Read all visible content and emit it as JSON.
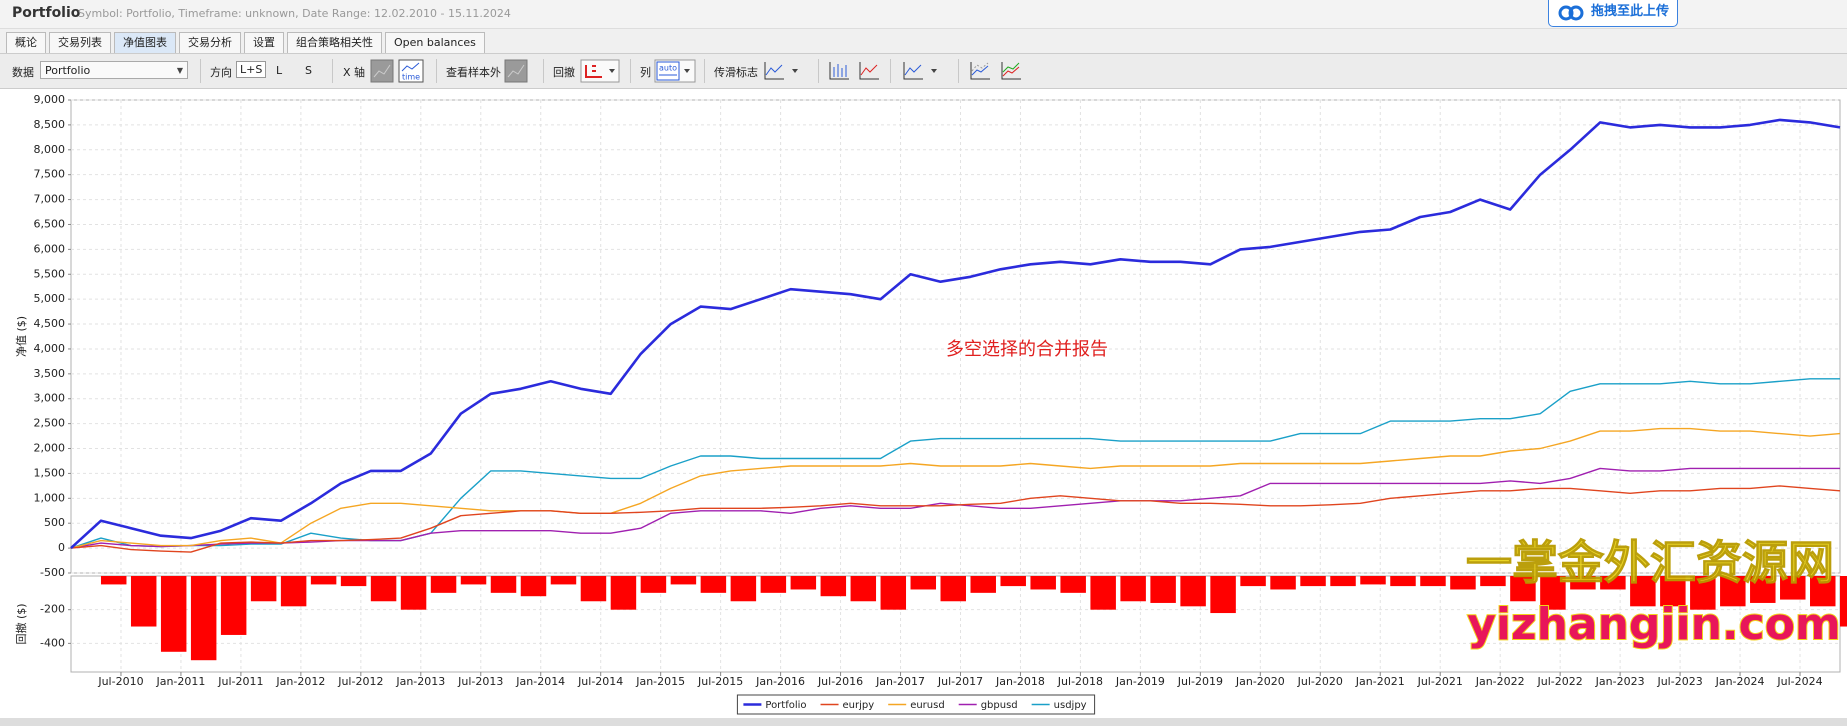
{
  "window": {
    "title": "Portfolio",
    "subtitle": "Symbol: Portfolio, Timeframe: unknown, Date Range: 12.02.2010 - 15.11.2024",
    "upload_button": "拖拽至此上传"
  },
  "tabs": {
    "items": [
      "概论",
      "交易列表",
      "净值图表",
      "交易分析",
      "设置",
      "组合策略相关性",
      "Open balances"
    ],
    "active": 2
  },
  "toolbar": {
    "data_label": "数据",
    "data_select": "Portfolio",
    "direction_label": "方向",
    "direction_options": [
      "L+S",
      "L",
      "S"
    ],
    "x_axis_label": "X 轴",
    "time_icon": "time",
    "out_of_sample_label": "查看样本外",
    "drawdown_label": "回撤",
    "columns_label": "列",
    "auto_icon": "auto",
    "markers_label": "传滑标志"
  },
  "watermark": {
    "cn": "一掌金外汇资源网",
    "url": "yizhangjin.com"
  },
  "chart_data": [
    {
      "type": "line",
      "y_label": "净值 ($)",
      "annotation": "多空选择的合并报告",
      "grid": true,
      "legend": "bottom",
      "x": [
        "Feb-2010",
        "May-2010",
        "Aug-2010",
        "Nov-2010",
        "Feb-2011",
        "May-2011",
        "Aug-2011",
        "Nov-2011",
        "Feb-2012",
        "May-2012",
        "Aug-2012",
        "Nov-2012",
        "Feb-2013",
        "May-2013",
        "Aug-2013",
        "Nov-2013",
        "Feb-2014",
        "May-2014",
        "Aug-2014",
        "Nov-2014",
        "Feb-2015",
        "May-2015",
        "Aug-2015",
        "Nov-2015",
        "Feb-2016",
        "May-2016",
        "Aug-2016",
        "Nov-2016",
        "Feb-2017",
        "May-2017",
        "Aug-2017",
        "Nov-2017",
        "Feb-2018",
        "May-2018",
        "Aug-2018",
        "Nov-2018",
        "Feb-2019",
        "May-2019",
        "Aug-2019",
        "Nov-2019",
        "Feb-2020",
        "May-2020",
        "Aug-2020",
        "Nov-2020",
        "Feb-2021",
        "May-2021",
        "Aug-2021",
        "Nov-2021",
        "Feb-2022",
        "May-2022",
        "Aug-2022",
        "Nov-2022",
        "Feb-2023",
        "May-2023",
        "Aug-2023",
        "Nov-2023",
        "Feb-2024",
        "May-2024",
        "Aug-2024",
        "Nov-2024"
      ],
      "xlim": [
        "Feb-2010",
        "Nov-2024"
      ],
      "xticks": [
        "Jul-2010",
        "Jan-2011",
        "Jul-2011",
        "Jan-2012",
        "Jul-2012",
        "Jan-2013",
        "Jul-2013",
        "Jan-2014",
        "Jul-2014",
        "Jan-2015",
        "Jul-2015",
        "Jan-2016",
        "Jul-2016",
        "Jan-2017",
        "Jul-2017",
        "Jan-2018",
        "Jul-2018",
        "Jan-2019",
        "Jul-2019",
        "Jan-2020",
        "Jul-2020",
        "Jan-2021",
        "Jul-2021",
        "Jan-2022",
        "Jul-2022",
        "Jan-2023",
        "Jul-2023",
        "Jan-2024",
        "Jul-2024"
      ],
      "ylim": [
        -500,
        9000
      ],
      "yticks": [
        -500,
        0,
        500,
        {
          "value": 1000,
          "label": "1,000"
        },
        {
          "value": 1500,
          "label": "1,500"
        },
        {
          "value": 2000,
          "label": "2,000"
        },
        {
          "value": 2500,
          "label": "2,500"
        },
        {
          "value": 3000,
          "label": "3,000"
        },
        {
          "value": 3500,
          "label": "3,500"
        },
        {
          "value": 4000,
          "label": "4,000"
        },
        {
          "value": 4500,
          "label": "4,500"
        },
        {
          "value": 5000,
          "label": "5,000"
        },
        {
          "value": 5500,
          "label": "5,500"
        },
        {
          "value": 6000,
          "label": "6,000"
        },
        {
          "value": 6500,
          "label": "6,500"
        },
        {
          "value": 7000,
          "label": "7,000"
        },
        {
          "value": 7500,
          "label": "7,500"
        },
        {
          "value": 8000,
          "label": "8,000"
        },
        {
          "value": 8500,
          "label": "8,500"
        },
        {
          "value": 9000,
          "label": "9,000"
        }
      ],
      "series": [
        {
          "name": "Portfolio",
          "color": "#2b2bdc",
          "values": [
            0,
            550,
            400,
            250,
            200,
            350,
            600,
            550,
            900,
            1300,
            1550,
            1550,
            1900,
            2700,
            3100,
            3200,
            3350,
            3200,
            3100,
            3900,
            4500,
            4850,
            4800,
            5000,
            5200,
            5150,
            5100,
            5000,
            5500,
            5350,
            5450,
            5600,
            5700,
            5750,
            5700,
            5800,
            5750,
            5750,
            5700,
            6000,
            6050,
            6150,
            6250,
            6350,
            6400,
            6650,
            6750,
            7000,
            6800,
            7500,
            8000,
            8550,
            8450,
            8500,
            8450,
            8450,
            8500,
            8600,
            8550,
            8450
          ]
        },
        {
          "name": "eurjpy",
          "color": "#e0451f",
          "values": [
            0,
            50,
            -30,
            -60,
            -80,
            100,
            120,
            100,
            150,
            150,
            170,
            200,
            400,
            650,
            700,
            750,
            750,
            700,
            700,
            720,
            750,
            800,
            800,
            800,
            820,
            850,
            900,
            850,
            850,
            850,
            880,
            900,
            1000,
            1050,
            1000,
            950,
            950,
            900,
            900,
            880,
            850,
            850,
            870,
            900,
            1000,
            1050,
            1100,
            1150,
            1150,
            1200,
            1200,
            1150,
            1100,
            1150,
            1150,
            1200,
            1200,
            1250,
            1200,
            1150
          ]
        },
        {
          "name": "eurusd",
          "color": "#f5a623",
          "values": [
            0,
            150,
            100,
            50,
            50,
            150,
            200,
            100,
            500,
            800,
            900,
            900,
            850,
            800,
            750,
            750,
            750,
            700,
            700,
            900,
            1200,
            1450,
            1550,
            1600,
            1650,
            1650,
            1650,
            1650,
            1700,
            1650,
            1650,
            1650,
            1700,
            1650,
            1600,
            1650,
            1650,
            1650,
            1650,
            1700,
            1700,
            1700,
            1700,
            1700,
            1750,
            1800,
            1850,
            1850,
            1950,
            2000,
            2150,
            2350,
            2350,
            2400,
            2400,
            2350,
            2350,
            2300,
            2250,
            2300
          ]
        },
        {
          "name": "gbpusd",
          "color": "#a020b0",
          "values": [
            0,
            100,
            50,
            30,
            50,
            80,
            100,
            100,
            120,
            150,
            150,
            150,
            300,
            350,
            350,
            350,
            350,
            300,
            300,
            400,
            700,
            750,
            750,
            750,
            700,
            800,
            850,
            800,
            800,
            900,
            850,
            800,
            800,
            850,
            900,
            950,
            950,
            950,
            1000,
            1050,
            1300,
            1300,
            1300,
            1300,
            1300,
            1300,
            1300,
            1300,
            1350,
            1300,
            1400,
            1600,
            1550,
            1550,
            1600,
            1600,
            1600,
            1600,
            1600,
            1600
          ]
        },
        {
          "name": "usdjpy",
          "color": "#1aa0c8",
          "values": [
            0,
            200,
            50,
            30,
            50,
            50,
            80,
            80,
            300,
            200,
            150,
            150,
            300,
            1000,
            1550,
            1550,
            1500,
            1450,
            1400,
            1400,
            1650,
            1850,
            1850,
            1800,
            1800,
            1800,
            1800,
            1800,
            2150,
            2200,
            2200,
            2200,
            2200,
            2200,
            2200,
            2150,
            2150,
            2150,
            2150,
            2150,
            2150,
            2300,
            2300,
            2300,
            2550,
            2550,
            2550,
            2600,
            2600,
            2700,
            3150,
            3300,
            3300,
            3300,
            3350,
            3300,
            3300,
            3350,
            3400,
            3400
          ]
        }
      ]
    },
    {
      "type": "bar",
      "y_label": "回撤 ($)",
      "color": "#ff0000",
      "grid": true,
      "x": [
        "Feb-2010",
        "May-2010",
        "Aug-2010",
        "Nov-2010",
        "Feb-2011",
        "May-2011",
        "Aug-2011",
        "Nov-2011",
        "Feb-2012",
        "May-2012",
        "Aug-2012",
        "Nov-2012",
        "Feb-2013",
        "May-2013",
        "Aug-2013",
        "Nov-2013",
        "Feb-2014",
        "May-2014",
        "Aug-2014",
        "Nov-2014",
        "Feb-2015",
        "May-2015",
        "Aug-2015",
        "Nov-2015",
        "Feb-2016",
        "May-2016",
        "Aug-2016",
        "Nov-2016",
        "Feb-2017",
        "May-2017",
        "Aug-2017",
        "Nov-2017",
        "Feb-2018",
        "May-2018",
        "Aug-2018",
        "Nov-2018",
        "Feb-2019",
        "May-2019",
        "Aug-2019",
        "Nov-2019",
        "Feb-2020",
        "May-2020",
        "Aug-2020",
        "Nov-2020",
        "Feb-2021",
        "May-2021",
        "Aug-2021",
        "Nov-2021",
        "Feb-2022",
        "May-2022",
        "Aug-2022",
        "Nov-2022",
        "Feb-2023",
        "May-2023",
        "Aug-2023",
        "Nov-2023",
        "Feb-2024",
        "May-2024",
        "Aug-2024",
        "Nov-2024"
      ],
      "values": [
        0,
        -50,
        -300,
        -450,
        -500,
        -350,
        -150,
        -180,
        -50,
        -60,
        -150,
        -200,
        -100,
        -50,
        -100,
        -120,
        -50,
        -150,
        -200,
        -100,
        -50,
        -100,
        -150,
        -100,
        -80,
        -120,
        -150,
        -200,
        -80,
        -150,
        -100,
        -60,
        -80,
        -100,
        -200,
        -150,
        -160,
        -180,
        -220,
        -60,
        -80,
        -60,
        -60,
        -50,
        -60,
        -60,
        -80,
        -60,
        -150,
        -200,
        -80,
        -80,
        -180,
        -180,
        -200,
        -180,
        -160,
        -140,
        -180,
        -300
      ],
      "xlim": [
        "Feb-2010",
        "Nov-2024"
      ],
      "xticks": [
        "Jul-2010",
        "Jan-2011",
        "Jul-2011",
        "Jan-2012",
        "Jul-2012",
        "Jan-2013",
        "Jul-2013",
        "Jan-2014",
        "Jul-2014",
        "Jan-2015",
        "Jul-2015",
        "Jan-2016",
        "Jul-2016",
        "Jan-2017",
        "Jul-2017",
        "Jan-2018",
        "Jul-2018",
        "Jan-2019",
        "Jul-2019",
        "Jan-2020",
        "Jul-2020",
        "Jan-2021",
        "Jul-2021",
        "Jan-2022",
        "Jul-2022",
        "Jan-2023",
        "Jul-2023",
        "Jan-2024",
        "Jul-2024"
      ],
      "ylim": [
        -570,
        0
      ],
      "yticks": [
        -400,
        -200
      ]
    }
  ]
}
